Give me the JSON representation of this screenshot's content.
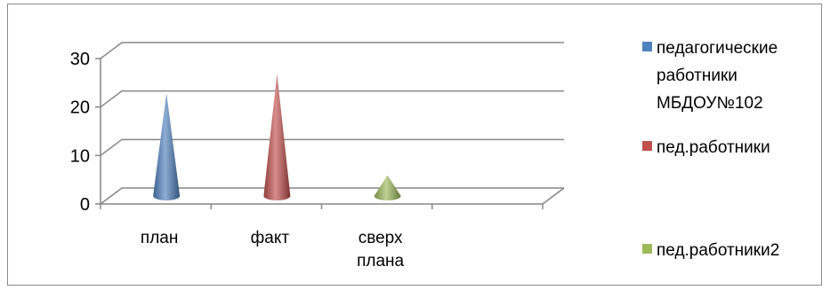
{
  "chart_data": {
    "type": "bar",
    "style": "3d-cone",
    "categories": [
      {
        "lines": [
          "план"
        ]
      },
      {
        "lines": [
          "факт"
        ]
      },
      {
        "lines": [
          "сверх",
          "плана"
        ]
      }
    ],
    "series": [
      {
        "name_lines": [
          "педагогические",
          "работники",
          "МБДОУ№102"
        ],
        "name": "педагогические работники МБДОУ№102",
        "values": [
          22,
          null,
          null
        ],
        "color": "#4f81bd"
      },
      {
        "name_lines": [
          "пед.работники"
        ],
        "name": "пед.работники",
        "values": [
          null,
          26,
          null
        ],
        "color": "#c0504d"
      },
      {
        "name_lines": [
          "пед.работники2"
        ],
        "name": "пед.работники2",
        "values": [
          null,
          null,
          5
        ],
        "color": "#9bbb59"
      }
    ],
    "y_ticks": [
      "0",
      "10",
      "20",
      "30"
    ],
    "ylim": [
      0,
      30
    ],
    "grid": true,
    "legend": "right"
  }
}
